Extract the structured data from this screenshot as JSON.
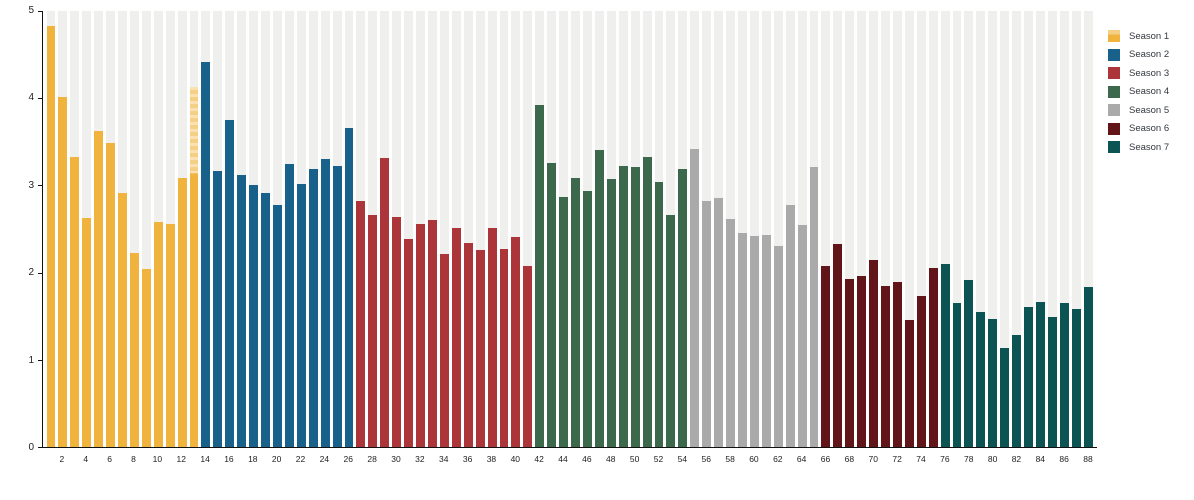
{
  "chart_data": {
    "type": "bar",
    "title": "",
    "xlabel": "",
    "ylabel": "",
    "ylim": [
      0,
      5
    ],
    "grid": "vertical background bands per bar, no horizontal gridlines",
    "legend_position": "top-right, outside plot",
    "y_tick_labels": [
      "0",
      "1",
      "2",
      "3",
      "4",
      "5"
    ],
    "x_tick_labels": [
      "2",
      "4",
      "6",
      "8",
      "10",
      "12",
      "14",
      "16",
      "18",
      "20",
      "22",
      "24",
      "26",
      "28",
      "30",
      "32",
      "34",
      "36",
      "38",
      "40",
      "42",
      "44",
      "46",
      "48",
      "50",
      "52",
      "54",
      "56",
      "58",
      "60",
      "62",
      "64",
      "66",
      "68",
      "70",
      "72",
      "74",
      "76",
      "78",
      "80",
      "82",
      "84",
      "86",
      "88"
    ],
    "episodes_total": 88,
    "series": [
      {
        "name": "Season 1",
        "color": "#F0B33E",
        "first_episode": 1,
        "values": [
          4.83,
          4.01,
          3.33,
          2.63,
          3.62,
          3.49,
          2.91,
          2.22,
          2.04,
          2.58,
          2.56,
          3.08,
          4.13
        ]
      },
      {
        "name": "Season 2",
        "color": "#17618B",
        "first_episode": 14,
        "values": [
          4.42,
          3.16,
          3.75,
          3.12,
          3.0,
          2.91,
          2.78,
          3.25,
          3.02,
          3.19,
          3.3,
          3.22,
          3.66
        ]
      },
      {
        "name": "Season 3",
        "color": "#AC3539",
        "first_episode": 27,
        "values": [
          2.82,
          2.66,
          3.32,
          2.64,
          2.39,
          2.56,
          2.6,
          2.21,
          2.51,
          2.34,
          2.26,
          2.51,
          2.27,
          2.41,
          2.08
        ]
      },
      {
        "name": "Season 4",
        "color": "#3C684C",
        "first_episode": 42,
        "values": [
          3.92,
          3.26,
          2.87,
          3.08,
          2.94,
          3.41,
          3.07,
          3.22,
          3.21,
          3.33,
          3.04,
          2.66,
          3.19
        ]
      },
      {
        "name": "Season 5",
        "color": "#AAAAAA",
        "first_episode": 55,
        "values": [
          3.42,
          2.82,
          2.85,
          2.61,
          2.45,
          2.42,
          2.43,
          2.3,
          2.77,
          2.55,
          3.21
        ]
      },
      {
        "name": "Season 6",
        "color": "#621518",
        "first_episode": 66,
        "values": [
          2.08,
          2.33,
          1.93,
          1.96,
          2.14,
          1.85,
          1.89,
          1.46,
          1.73,
          2.05
        ]
      },
      {
        "name": "Season 7",
        "color": "#0C5453",
        "first_episode": 76,
        "values": [
          2.1,
          1.65,
          1.91,
          1.55,
          1.47,
          1.13,
          1.29,
          1.6,
          1.66,
          1.49,
          1.65,
          1.58,
          1.83
        ]
      }
    ],
    "special_bar": {
      "episode": 13,
      "faded_color": "#F6CF86",
      "faded_top_above_value": 3.14,
      "note": "episode-13 bar has a lighter hatched/faded top segment; season-1 legend swatch shows same faded top"
    }
  }
}
